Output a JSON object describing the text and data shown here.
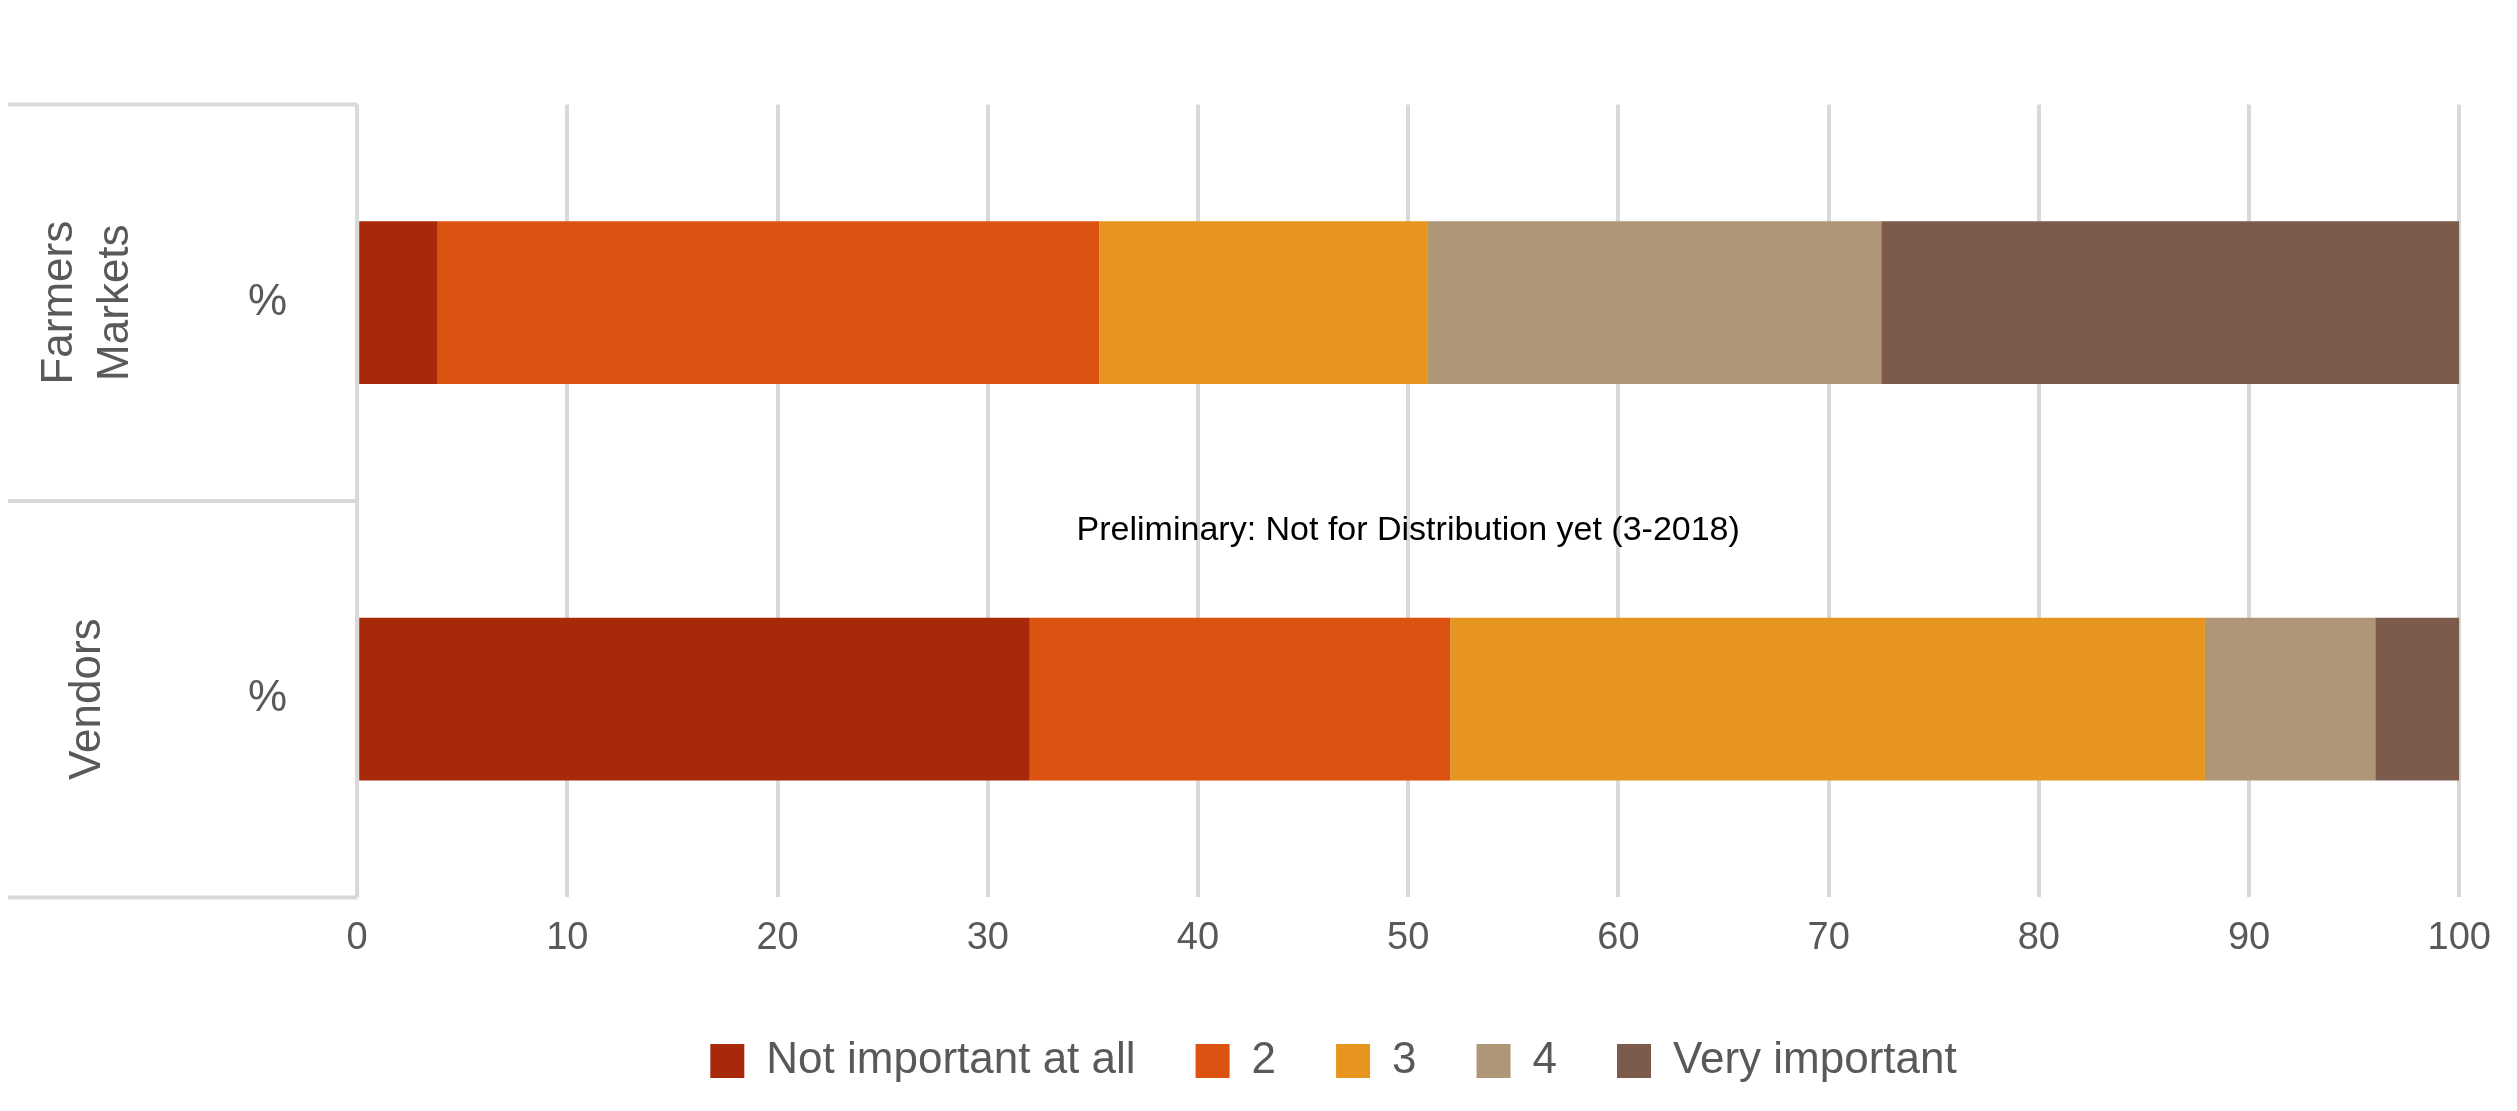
{
  "chart_data": {
    "type": "bar",
    "orientation": "horizontal",
    "stacked": true,
    "categories": [
      "%",
      "%"
    ],
    "series": [
      {
        "name": "Not important at all",
        "color": "#a8290a",
        "values": [
          3.8,
          32.0
        ]
      },
      {
        "name": "2",
        "color": "#dc5210",
        "values": [
          31.5,
          20.0
        ]
      },
      {
        "name": "3",
        "color": "#e6961f",
        "values": [
          15.6,
          35.9
        ]
      },
      {
        "name": "4",
        "color": "#ae9676",
        "values": [
          21.6,
          8.1
        ]
      },
      {
        "name": "Very important",
        "color": "#7d5b4c",
        "values": [
          27.5,
          4.0
        ]
      }
    ],
    "xlim": [
      0,
      100
    ],
    "xticks": [
      0,
      10,
      20,
      30,
      40,
      50,
      60,
      70,
      80,
      90,
      100
    ],
    "grid": "x",
    "legend": "bottom",
    "annotations": [
      "Farmers Markets",
      "Vendors",
      "Preliminary: Not for Distribution yet (3-2018)"
    ]
  }
}
